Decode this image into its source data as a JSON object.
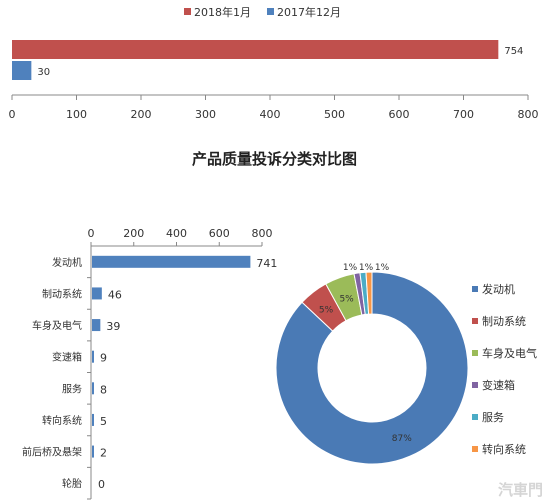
{
  "top_chart": {
    "chart_data": {
      "type": "bar",
      "orientation": "horizontal",
      "series": [
        {
          "name": "2018年1月",
          "values": [
            754
          ],
          "color": "#c0504d"
        },
        {
          "name": "2017年12月",
          "values": [
            30
          ],
          "color": "#4f81bd"
        }
      ],
      "xlim": [
        0,
        800
      ],
      "x_ticks": [
        0,
        100,
        200,
        300,
        400,
        500,
        600,
        700,
        800
      ],
      "legend": "top",
      "grid": false
    }
  },
  "title": "产品质量投诉分类对比图",
  "left_chart": {
    "chart_data": {
      "type": "bar",
      "orientation": "horizontal",
      "categories": [
        "发动机",
        "制动系统",
        "车身及电气",
        "变速箱",
        "服务",
        "转向系统",
        "前后桥及悬架",
        "轮胎"
      ],
      "values": [
        741,
        46,
        39,
        9,
        8,
        5,
        2,
        0
      ],
      "xlim": [
        0,
        800
      ],
      "x_ticks": [
        0,
        200,
        400,
        600,
        800
      ],
      "axis_position": "top",
      "color": "#4f81bd"
    }
  },
  "right_chart": {
    "chart_data": {
      "type": "pie",
      "donut": true,
      "labels": [
        "发动机",
        "制动系统",
        "车身及电气",
        "变速箱",
        "服务",
        "转向系统"
      ],
      "values": [
        87,
        5,
        5,
        1,
        1,
        1
      ],
      "display_labels": [
        "87%",
        "5%",
        "5%",
        "1%",
        "1%",
        "1%"
      ],
      "colors": [
        "#4a7ab5",
        "#c0504d",
        "#9bbb59",
        "#8064a2",
        "#4bacc6",
        "#f79646"
      ],
      "legend": "right"
    }
  },
  "watermark": "汽車門"
}
